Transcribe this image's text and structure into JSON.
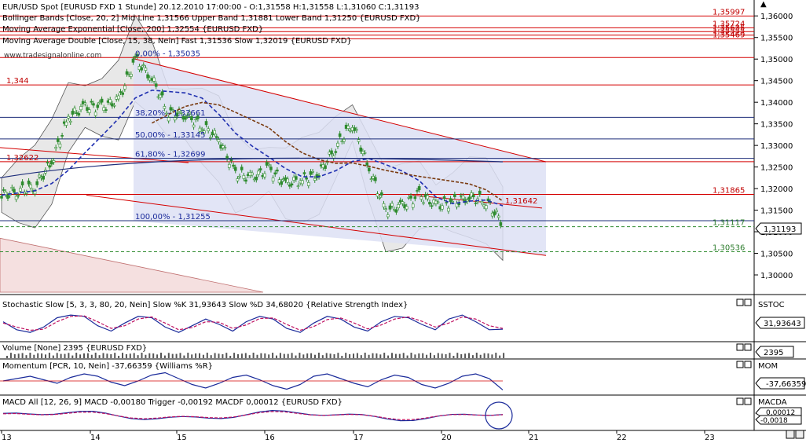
{
  "colors": {
    "background": "#ffffff",
    "hline_red": "#d40000",
    "hline_blue": "#1d2d7a",
    "hline_green_dashed": "#2e8b2e",
    "channel_fill": "#dde0f5",
    "bollinger_fill": "#e8e8e8",
    "candle": "#2e8b2e",
    "ema_blue": "#1f2fb0",
    "ma_brown": "#7a3b10",
    "label_red": "#c00000",
    "label_blue": "#1a2a9a",
    "label_green": "#2e7d2e",
    "stoch_k": "#1a2a9a",
    "stoch_d": "#c01060",
    "price_tag_bg": "#ffffff",
    "panel_border": "#000000"
  },
  "chart_data": [
    {
      "type": "line",
      "title": "EUR/USD Spot [EURUSD FXD  1 Stunde] 20.12.2010 17:00:00 - O:1,31558 H:1,31558 L:1,31060 C:1,31193",
      "legend": [
        "Bollinger Bands [Close, 20, 2] Mid Line 1,31566 Upper Band 1,31881 Lower Band 1,31250 {EURUSD FXD}",
        "Moving Average Exponential [Close, 200] 1,32554 {EURUSD FXD}",
        "Moving Average Double [Close, 15, 38, Nein] Fast 1,31536 Slow 1,32019 {EURUSD FXD}"
      ],
      "watermark": "www.tradesignalonline.com",
      "xlabels": [
        "13",
        "14",
        "15",
        "16",
        "17",
        "20",
        "21",
        "22",
        "23"
      ],
      "ylim": [
        1.296,
        1.3615
      ],
      "yticks": [
        "1,36000",
        "1,35500",
        "1,35000",
        "1,34500",
        "1,34000",
        "1,33500",
        "1,33000",
        "1,32500",
        "1,32000",
        "1,31500",
        "1,31000",
        "1,30500",
        "1,30000"
      ],
      "last_price": "1,31193",
      "close_series": {
        "x": [
          0,
          5,
          10,
          15,
          20,
          25,
          30,
          35,
          40,
          45,
          50,
          55,
          60,
          65,
          70,
          75,
          80,
          85,
          90,
          95,
          100,
          105,
          110,
          115,
          120,
          125,
          130,
          135,
          140,
          145,
          150
        ],
        "y": [
          1.3185,
          1.3195,
          1.3205,
          1.3262,
          1.3365,
          1.339,
          1.3388,
          1.3405,
          1.3501,
          1.3455,
          1.3375,
          1.3372,
          1.3345,
          1.3315,
          1.3235,
          1.3225,
          1.3245,
          1.3212,
          1.322,
          1.3235,
          1.3295,
          1.3352,
          1.3245,
          1.315,
          1.316,
          1.3185,
          1.3162,
          1.3168,
          1.318,
          1.3172,
          1.3119
        ]
      },
      "horizontal_levels": [
        {
          "value": 1.35997,
          "label": "1,35997",
          "style": "red"
        },
        {
          "value": 1.35724,
          "label": "1,35724",
          "style": "red"
        },
        {
          "value": 1.35635,
          "label": "1,35635",
          "style": "red"
        },
        {
          "value": 1.35555,
          "label": "1,35555",
          "style": "red"
        },
        {
          "value": 1.35469,
          "label": "1,35469",
          "style": "red"
        },
        {
          "value": 1.35035,
          "label": "",
          "style": "red"
        },
        {
          "value": 1.344,
          "label": "1,344",
          "style": "red"
        },
        {
          "value": 1.3365,
          "label": "",
          "style": "blue"
        },
        {
          "value": 1.3315,
          "label": "",
          "style": "blue"
        },
        {
          "value": 1.32699,
          "label": "",
          "style": "blue"
        },
        {
          "value": 1.32622,
          "label": "1,32622",
          "style": "red"
        },
        {
          "value": 1.31865,
          "label": "1,31865",
          "style": "red"
        },
        {
          "value": 1.31255,
          "label": "",
          "style": "blue"
        },
        {
          "value": 1.31117,
          "label": "1,31117",
          "style": "green"
        },
        {
          "value": 1.30536,
          "label": "1,30536",
          "style": "green"
        }
      ],
      "fibonacci": [
        {
          "value": 1.35035,
          "label": "0,00% - 1,35035"
        },
        {
          "value": 1.33661,
          "label": "38,20% - 1,33661"
        },
        {
          "value": 1.33145,
          "label": "50,00% - 1,33145"
        },
        {
          "value": 1.32699,
          "label": "61,80% - 1,32699"
        },
        {
          "value": 1.31255,
          "label": "100,00% - 1,31255"
        }
      ],
      "extra_labels": [
        {
          "text": "1,31642",
          "value": 1.31642
        }
      ]
    },
    {
      "type": "line",
      "title": "Stochastic Slow [5, 3, 3, 80, 20, Nein] Slow %K 31,93643 Slow %D 34,68020 {Relative Strength Index}",
      "panel_tag": "SSTOC",
      "value_tag": "31,93643",
      "series": [
        {
          "name": "Slow %K",
          "values": [
            60,
            30,
            20,
            40,
            75,
            85,
            80,
            45,
            25,
            55,
            80,
            75,
            40,
            20,
            45,
            70,
            50,
            25,
            60,
            80,
            70,
            35,
            20,
            55,
            80,
            70,
            40,
            25,
            60,
            80,
            75,
            50,
            30,
            70,
            85,
            60,
            30,
            32
          ]
        },
        {
          "name": "Slow %D",
          "values": [
            55,
            40,
            28,
            32,
            60,
            80,
            82,
            60,
            35,
            45,
            70,
            78,
            55,
            30,
            38,
            60,
            58,
            35,
            48,
            72,
            74,
            50,
            28,
            42,
            68,
            74,
            55,
            33,
            48,
            70,
            78,
            62,
            40,
            55,
            78,
            70,
            45,
            35
          ]
        }
      ]
    },
    {
      "type": "bar",
      "title": "Volume [None] 2395 {EURUSD FXD}",
      "panel_tag": "",
      "value_tag": "2395"
    },
    {
      "type": "line",
      "title": "Momentum [PCR, 10, Nein] -37,66359 {Williams %R}",
      "panel_tag": "MOM",
      "value_tag": "-37,66359",
      "series": [
        {
          "name": "Momentum",
          "values": [
            0,
            10,
            20,
            5,
            -10,
            15,
            30,
            20,
            -5,
            -20,
            0,
            25,
            35,
            10,
            -15,
            -30,
            -10,
            15,
            25,
            5,
            -20,
            -35,
            -15,
            20,
            30,
            10,
            -10,
            -25,
            5,
            25,
            15,
            -15,
            -30,
            -10,
            20,
            30,
            10,
            -38
          ]
        }
      ]
    },
    {
      "type": "line",
      "title": "MACD All [12, 26, 9] MACD -0,00180 Trigger -0,00192 MACDF 0,00012 {EURUSD FXD}",
      "panel_tag": "MACDA",
      "value_tags": [
        "0,00012",
        "-0,0018"
      ]
    }
  ]
}
